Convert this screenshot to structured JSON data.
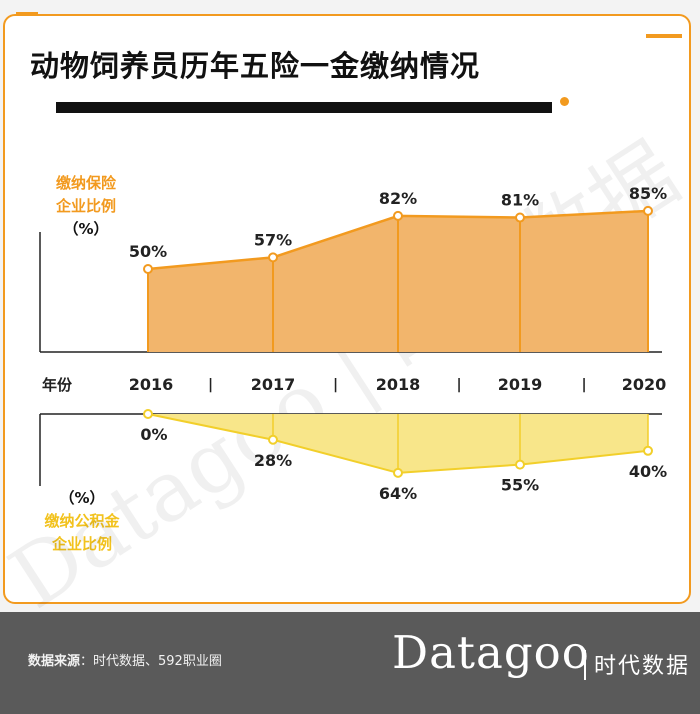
{
  "title": "动物饲养员历年五险一金缴纳情况",
  "colors": {
    "insurance_line": "#f29a1f",
    "insurance_fill": "#f2b56c",
    "fund_line": "#f2cf2a",
    "fund_fill": "#f8e68a",
    "accent": "#f29a1f"
  },
  "axis": {
    "top_label_line1": "缴纳保险",
    "top_label_line2": "企业比例",
    "top_unit": "（%）",
    "bottom_unit": "（%）",
    "bottom_label_line1": "缴纳公积金",
    "bottom_label_line2": "企业比例",
    "year_label": "年份",
    "separator": "|"
  },
  "chart_data": {
    "type": "area",
    "categories": [
      "2016",
      "2017",
      "2018",
      "2019",
      "2020"
    ],
    "series": [
      {
        "name": "缴纳保险企业比例",
        "values": [
          50,
          57,
          82,
          81,
          85
        ],
        "labels": [
          "50%",
          "57%",
          "82%",
          "81%",
          "85%"
        ],
        "direction": "up"
      },
      {
        "name": "缴纳公积金企业比例",
        "values": [
          0,
          28,
          64,
          55,
          40
        ],
        "labels": [
          "0%",
          "28%",
          "64%",
          "55%",
          "40%"
        ],
        "direction": "down"
      }
    ],
    "unit": "%"
  },
  "watermark": "Datagoo | 时代数据",
  "footer": {
    "source_label": "数据来源",
    "source_text": "：时代数据、592职业圈",
    "brand_en": "Datagoo",
    "brand_cn": "时代数据"
  }
}
